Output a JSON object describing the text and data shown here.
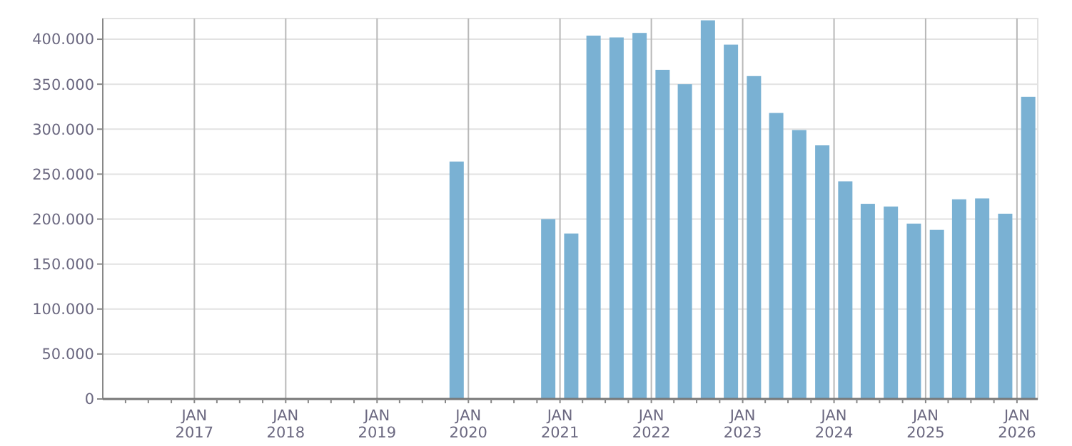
{
  "chart_data": {
    "type": "bar",
    "x": [
      "2019-11-15",
      "2020-11-15",
      "2021-02-15",
      "2021-05-15",
      "2021-08-15",
      "2021-11-15",
      "2022-02-15",
      "2022-05-15",
      "2022-08-15",
      "2022-11-15",
      "2023-02-15",
      "2023-05-15",
      "2023-08-15",
      "2023-11-15",
      "2024-02-15",
      "2024-05-15",
      "2024-08-15",
      "2024-11-15",
      "2025-02-15",
      "2025-05-15",
      "2025-08-15",
      "2025-11-15",
      "2026-02-15"
    ],
    "values": [
      264000,
      200000,
      184000,
      404000,
      402000,
      407000,
      366000,
      350000,
      421000,
      394000,
      359000,
      318000,
      299000,
      282000,
      242000,
      217000,
      214000,
      195000,
      188000,
      222000,
      223000,
      206000,
      336000
    ],
    "color": "#7ab1d3",
    "xlim": [
      "2016-01-01",
      "2026-03-25"
    ],
    "xticks": [
      {
        "value": "2016-04-01",
        "label": null
      },
      {
        "value": "2016-07-01",
        "label": null
      },
      {
        "value": "2016-10-01",
        "label": null
      },
      {
        "value": "2017-01-01",
        "label": "JAN\n2017"
      },
      {
        "value": "2017-04-01",
        "label": null
      },
      {
        "value": "2017-07-01",
        "label": null
      },
      {
        "value": "2017-10-01",
        "label": null
      },
      {
        "value": "2018-01-01",
        "label": "JAN\n2018"
      },
      {
        "value": "2018-04-01",
        "label": null
      },
      {
        "value": "2018-07-01",
        "label": null
      },
      {
        "value": "2018-10-01",
        "label": null
      },
      {
        "value": "2019-01-01",
        "label": "JAN\n2019"
      },
      {
        "value": "2019-04-01",
        "label": null
      },
      {
        "value": "2019-07-01",
        "label": null
      },
      {
        "value": "2019-10-01",
        "label": null
      },
      {
        "value": "2020-01-01",
        "label": "JAN\n2020"
      },
      {
        "value": "2020-04-01",
        "label": null
      },
      {
        "value": "2020-07-01",
        "label": null
      },
      {
        "value": "2020-10-01",
        "label": null
      },
      {
        "value": "2021-01-01",
        "label": "JAN\n2021"
      },
      {
        "value": "2021-04-01",
        "label": null
      },
      {
        "value": "2021-07-01",
        "label": null
      },
      {
        "value": "2021-10-01",
        "label": null
      },
      {
        "value": "2022-01-01",
        "label": "JAN\n2022"
      },
      {
        "value": "2022-04-01",
        "label": null
      },
      {
        "value": "2022-07-01",
        "label": null
      },
      {
        "value": "2022-10-01",
        "label": null
      },
      {
        "value": "2023-01-01",
        "label": "JAN\n2023"
      },
      {
        "value": "2023-04-01",
        "label": null
      },
      {
        "value": "2023-07-01",
        "label": null
      },
      {
        "value": "2023-10-01",
        "label": null
      },
      {
        "value": "2024-01-01",
        "label": "JAN\n2024"
      },
      {
        "value": "2024-04-01",
        "label": null
      },
      {
        "value": "2024-07-01",
        "label": null
      },
      {
        "value": "2024-10-01",
        "label": null
      },
      {
        "value": "2025-01-01",
        "label": "JAN\n2025"
      },
      {
        "value": "2025-04-01",
        "label": null
      },
      {
        "value": "2025-07-01",
        "label": null
      },
      {
        "value": "2025-10-01",
        "label": null
      },
      {
        "value": "2026-01-01",
        "label": "JAN\n2026"
      }
    ],
    "ylim": [
      0,
      423000
    ],
    "yticks": [
      {
        "value": 0,
        "label": "0"
      },
      {
        "value": 50000,
        "label": "50.000"
      },
      {
        "value": 100000,
        "label": "100.000"
      },
      {
        "value": 150000,
        "label": "150.000"
      },
      {
        "value": 200000,
        "label": "200.000"
      },
      {
        "value": 250000,
        "label": "250.000"
      },
      {
        "value": 300000,
        "label": "300.000"
      },
      {
        "value": 350000,
        "label": "350.000"
      },
      {
        "value": 400000,
        "label": "400.000"
      }
    ],
    "grid": true
  }
}
